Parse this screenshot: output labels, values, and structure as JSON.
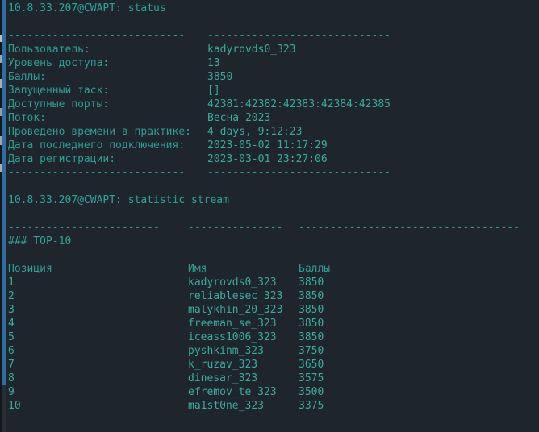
{
  "palette": {
    "background": "#1f252d",
    "text_teal": "#2fa496",
    "value_teal": "#3aab9c",
    "edge_blue": "#2e6ca3"
  },
  "terminal": {
    "command_status": "10.8.33.207@CWAPT: status",
    "command_statistic": "10.8.33.207@CWAPT: statistic stream",
    "separator_status": {
      "left": "----------------------------",
      "right": "-----------------------------"
    },
    "separator_statistic": {
      "col1": "------------------------",
      "col2": "---------------",
      "col3": "-----------------------------------"
    },
    "status": {
      "rows": [
        {
          "label": "Пользователь:",
          "value": "kadyrovds0_323"
        },
        {
          "label": "Уровень доступа:",
          "value": "13"
        },
        {
          "label": "Баллы:",
          "value": "3850"
        },
        {
          "label": "Запущенный таск:",
          "value": "[]"
        },
        {
          "label": "Доступные порты:",
          "value": "42381:42382:42383:42384:42385"
        },
        {
          "label": "Поток:",
          "value": "Весна 2023"
        },
        {
          "label": "Проведено времени в практике:",
          "value": "4 days, 9:12:23"
        },
        {
          "label": "Дата последнего подключения:",
          "value": "2023-05-02 11:17:29"
        },
        {
          "label": "Дата регистрации:",
          "value": "2023-03-01 23:27:06"
        }
      ]
    },
    "top10": {
      "heading": "### TOP-10",
      "columns": [
        "Позиция",
        "Имя",
        "Баллы"
      ],
      "rows": [
        {
          "position": "1",
          "name": "kadyrovds0_323",
          "score": "3850"
        },
        {
          "position": "2",
          "name": "reliablesec_323",
          "score": "3850"
        },
        {
          "position": "3",
          "name": "malykhin_20_323",
          "score": "3850"
        },
        {
          "position": "4",
          "name": "freeman_se_323",
          "score": "3850"
        },
        {
          "position": "5",
          "name": "iceass1006_323",
          "score": "3850"
        },
        {
          "position": "6",
          "name": "pyshkinm_323",
          "score": "3750"
        },
        {
          "position": "7",
          "name": "k_ruzav_323",
          "score": "3650"
        },
        {
          "position": "8",
          "name": "dinesar_323",
          "score": "3575"
        },
        {
          "position": "9",
          "name": "efremov_te_323",
          "score": "3500"
        },
        {
          "position": "10",
          "name": "ma1st0ne_323",
          "score": "3375"
        }
      ]
    }
  }
}
